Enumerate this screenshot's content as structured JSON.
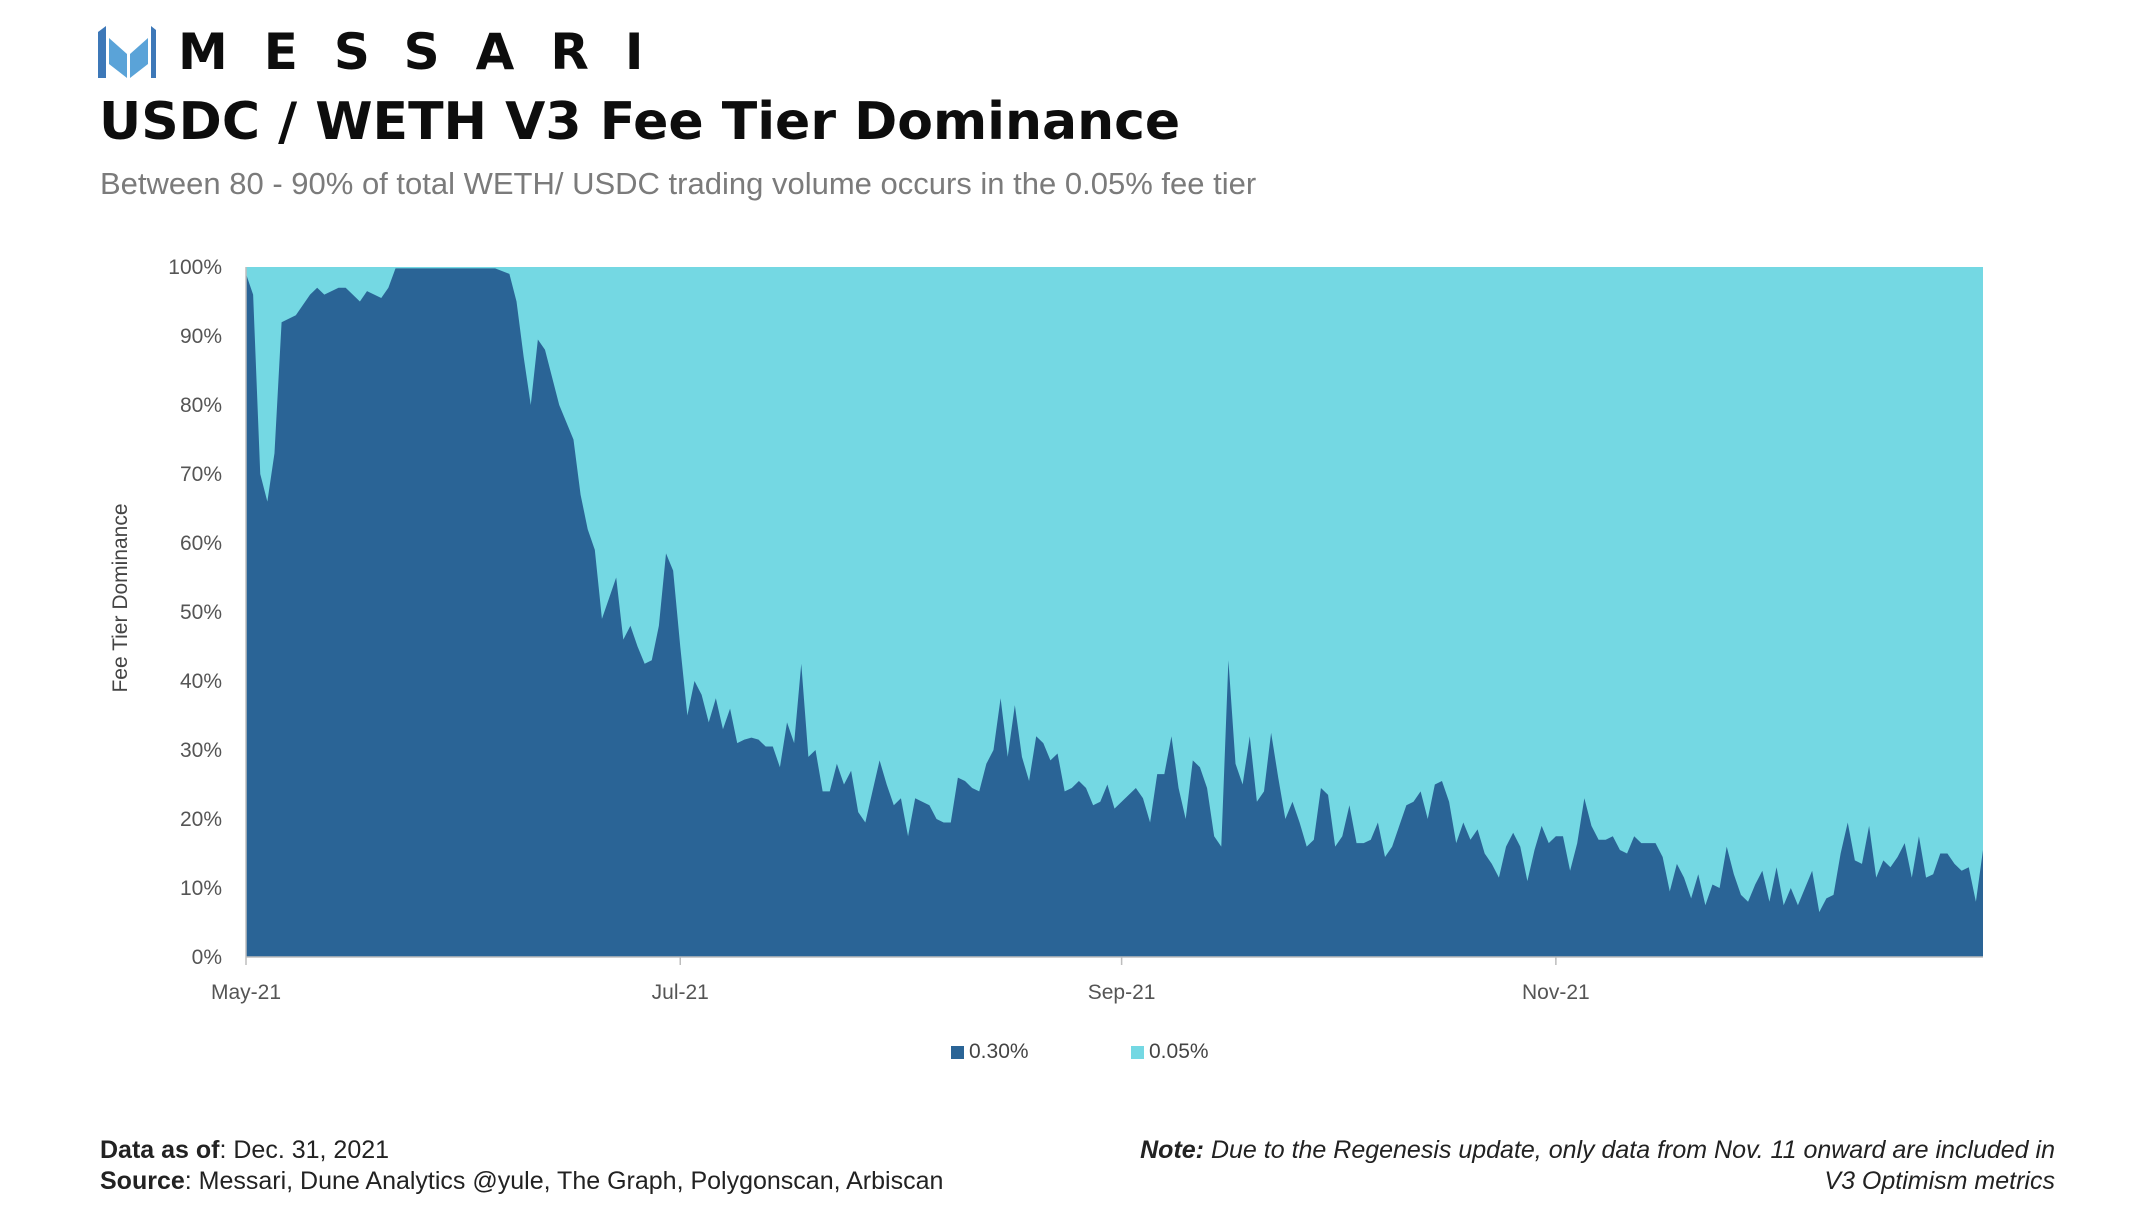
{
  "brand": {
    "name": "MESSARI"
  },
  "header": {
    "title": "USDC / WETH V3 Fee Tier Dominance",
    "subtitle": "Between 80 - 90% of total WETH/ USDC trading volume occurs in the 0.05% fee tier"
  },
  "colors": {
    "series_030": "#2a6496",
    "series_005": "#74d8e3",
    "logo": "#3d78b8"
  },
  "chart_data": {
    "type": "area",
    "stacked": true,
    "title": "USDC / WETH V3 Fee Tier Dominance",
    "xlabel": "",
    "ylabel": "Fee Tier Dominance",
    "ylim": [
      0,
      100
    ],
    "yticks": [
      0,
      10,
      20,
      30,
      40,
      50,
      60,
      70,
      80,
      90,
      100
    ],
    "ytick_labels": [
      "0%",
      "10%",
      "20%",
      "30%",
      "40%",
      "50%",
      "60%",
      "70%",
      "80%",
      "90%",
      "100%"
    ],
    "x_range": [
      "2021-05-01",
      "2021-12-31"
    ],
    "xticks": [
      {
        "date": "2021-05-01",
        "label": "May-21"
      },
      {
        "date": "2021-07-01",
        "label": "Jul-21"
      },
      {
        "date": "2021-09-01",
        "label": "Sep-21"
      },
      {
        "date": "2021-11-01",
        "label": "Nov-21"
      }
    ],
    "legend_position": "bottom",
    "series": [
      {
        "name": "0.30%",
        "color": "#2a6496",
        "points": [
          [
            "2021-05-01",
            99
          ],
          [
            "2021-05-02",
            96
          ],
          [
            "2021-05-03",
            70
          ],
          [
            "2021-05-04",
            66
          ],
          [
            "2021-05-05",
            73
          ],
          [
            "2021-05-06",
            92
          ],
          [
            "2021-05-08",
            93
          ],
          [
            "2021-05-10",
            96
          ],
          [
            "2021-05-11",
            97
          ],
          [
            "2021-05-12",
            96
          ],
          [
            "2021-05-14",
            97
          ],
          [
            "2021-05-15",
            97
          ],
          [
            "2021-05-17",
            95
          ],
          [
            "2021-05-18",
            96.5
          ],
          [
            "2021-05-20",
            95.5
          ],
          [
            "2021-05-21",
            97
          ],
          [
            "2021-05-22",
            99.8
          ],
          [
            "2021-06-05",
            99.8
          ],
          [
            "2021-06-07",
            99
          ],
          [
            "2021-06-08",
            95
          ],
          [
            "2021-06-09",
            87
          ],
          [
            "2021-06-10",
            80
          ],
          [
            "2021-06-11",
            89.5
          ],
          [
            "2021-06-12",
            88
          ],
          [
            "2021-06-13",
            84
          ],
          [
            "2021-06-14",
            80
          ],
          [
            "2021-06-16",
            75
          ],
          [
            "2021-06-17",
            67
          ],
          [
            "2021-06-18",
            62
          ],
          [
            "2021-06-19",
            59
          ],
          [
            "2021-06-20",
            49
          ],
          [
            "2021-06-21",
            52
          ],
          [
            "2021-06-22",
            55
          ],
          [
            "2021-06-23",
            46
          ],
          [
            "2021-06-24",
            48
          ],
          [
            "2021-06-25",
            45
          ],
          [
            "2021-06-26",
            42.5
          ],
          [
            "2021-06-27",
            43
          ],
          [
            "2021-06-28",
            48
          ],
          [
            "2021-06-29",
            58.5
          ],
          [
            "2021-06-30",
            56
          ],
          [
            "2021-07-01",
            45
          ],
          [
            "2021-07-02",
            35
          ],
          [
            "2021-07-03",
            40
          ],
          [
            "2021-07-04",
            38
          ],
          [
            "2021-07-05",
            34
          ],
          [
            "2021-07-06",
            37.5
          ],
          [
            "2021-07-07",
            33
          ],
          [
            "2021-07-08",
            36
          ],
          [
            "2021-07-09",
            31
          ],
          [
            "2021-07-10",
            31.5
          ],
          [
            "2021-07-11",
            31.8
          ],
          [
            "2021-07-12",
            31.5
          ],
          [
            "2021-07-13",
            30.5
          ],
          [
            "2021-07-14",
            30.5
          ],
          [
            "2021-07-15",
            27.5
          ],
          [
            "2021-07-16",
            34
          ],
          [
            "2021-07-17",
            31
          ],
          [
            "2021-07-18",
            42.5
          ],
          [
            "2021-07-19",
            29
          ],
          [
            "2021-07-20",
            30
          ],
          [
            "2021-07-21",
            24
          ],
          [
            "2021-07-22",
            24
          ],
          [
            "2021-07-23",
            28
          ],
          [
            "2021-07-24",
            25
          ],
          [
            "2021-07-25",
            27
          ],
          [
            "2021-07-26",
            21
          ],
          [
            "2021-07-27",
            19.5
          ],
          [
            "2021-07-28",
            24
          ],
          [
            "2021-07-29",
            28.5
          ],
          [
            "2021-07-30",
            25
          ],
          [
            "2021-07-31",
            22
          ],
          [
            "2021-08-01",
            23
          ],
          [
            "2021-08-02",
            17.5
          ],
          [
            "2021-08-03",
            23
          ],
          [
            "2021-08-04",
            22.5
          ],
          [
            "2021-08-05",
            22
          ],
          [
            "2021-08-06",
            20
          ],
          [
            "2021-08-07",
            19.5
          ],
          [
            "2021-08-08",
            19.5
          ],
          [
            "2021-08-09",
            26
          ],
          [
            "2021-08-10",
            25.5
          ],
          [
            "2021-08-11",
            24.5
          ],
          [
            "2021-08-12",
            24
          ],
          [
            "2021-08-13",
            28
          ],
          [
            "2021-08-14",
            30
          ],
          [
            "2021-08-15",
            37.5
          ],
          [
            "2021-08-16",
            29
          ],
          [
            "2021-08-17",
            36.5
          ],
          [
            "2021-08-18",
            29
          ],
          [
            "2021-08-19",
            25.5
          ],
          [
            "2021-08-20",
            32
          ],
          [
            "2021-08-21",
            31
          ],
          [
            "2021-08-22",
            28.5
          ],
          [
            "2021-08-23",
            29.5
          ],
          [
            "2021-08-24",
            24
          ],
          [
            "2021-08-25",
            24.5
          ],
          [
            "2021-08-26",
            25.5
          ],
          [
            "2021-08-27",
            24.5
          ],
          [
            "2021-08-28",
            22
          ],
          [
            "2021-08-29",
            22.5
          ],
          [
            "2021-08-30",
            25
          ],
          [
            "2021-08-31",
            21.5
          ],
          [
            "2021-09-01",
            22.5
          ],
          [
            "2021-09-02",
            23.5
          ],
          [
            "2021-09-03",
            24.5
          ],
          [
            "2021-09-04",
            23
          ],
          [
            "2021-09-05",
            19.5
          ],
          [
            "2021-09-06",
            26.5
          ],
          [
            "2021-09-07",
            26.5
          ],
          [
            "2021-09-08",
            32
          ],
          [
            "2021-09-09",
            24.5
          ],
          [
            "2021-09-10",
            20
          ],
          [
            "2021-09-11",
            28.5
          ],
          [
            "2021-09-12",
            27.5
          ],
          [
            "2021-09-13",
            24.5
          ],
          [
            "2021-09-14",
            17.5
          ],
          [
            "2021-09-15",
            16
          ],
          [
            "2021-09-16",
            43
          ],
          [
            "2021-09-17",
            28
          ],
          [
            "2021-09-18",
            25
          ],
          [
            "2021-09-19",
            32
          ],
          [
            "2021-09-20",
            22.5
          ],
          [
            "2021-09-21",
            24
          ],
          [
            "2021-09-22",
            32.5
          ],
          [
            "2021-09-23",
            26
          ],
          [
            "2021-09-24",
            20
          ],
          [
            "2021-09-25",
            22.5
          ],
          [
            "2021-09-26",
            19.5
          ],
          [
            "2021-09-27",
            16
          ],
          [
            "2021-09-28",
            17
          ],
          [
            "2021-09-29",
            24.5
          ],
          [
            "2021-09-30",
            23.5
          ],
          [
            "2021-10-01",
            16
          ],
          [
            "2021-10-02",
            17.5
          ],
          [
            "2021-10-03",
            22
          ],
          [
            "2021-10-04",
            16.5
          ],
          [
            "2021-10-05",
            16.5
          ],
          [
            "2021-10-06",
            17
          ],
          [
            "2021-10-07",
            19.5
          ],
          [
            "2021-10-08",
            14.5
          ],
          [
            "2021-10-09",
            16
          ],
          [
            "2021-10-10",
            19
          ],
          [
            "2021-10-11",
            22
          ],
          [
            "2021-10-12",
            22.5
          ],
          [
            "2021-10-13",
            24
          ],
          [
            "2021-10-14",
            20
          ],
          [
            "2021-10-15",
            25
          ],
          [
            "2021-10-16",
            25.5
          ],
          [
            "2021-10-17",
            22.5
          ],
          [
            "2021-10-18",
            16.5
          ],
          [
            "2021-10-19",
            19.5
          ],
          [
            "2021-10-20",
            17
          ],
          [
            "2021-10-21",
            18.5
          ],
          [
            "2021-10-22",
            15
          ],
          [
            "2021-10-23",
            13.5
          ],
          [
            "2021-10-24",
            11.5
          ],
          [
            "2021-10-25",
            16
          ],
          [
            "2021-10-26",
            18
          ],
          [
            "2021-10-27",
            16
          ],
          [
            "2021-10-28",
            11
          ],
          [
            "2021-10-29",
            15.5
          ],
          [
            "2021-10-30",
            19
          ],
          [
            "2021-10-31",
            16.5
          ],
          [
            "2021-11-01",
            17.5
          ],
          [
            "2021-11-02",
            17.5
          ],
          [
            "2021-11-03",
            12.5
          ],
          [
            "2021-11-04",
            16.5
          ],
          [
            "2021-11-05",
            23
          ],
          [
            "2021-11-06",
            19
          ],
          [
            "2021-11-07",
            17
          ],
          [
            "2021-11-08",
            17
          ],
          [
            "2021-11-09",
            17.5
          ],
          [
            "2021-11-10",
            15.5
          ],
          [
            "2021-11-11",
            15
          ],
          [
            "2021-11-12",
            17.5
          ],
          [
            "2021-11-13",
            16.5
          ],
          [
            "2021-11-14",
            16.5
          ],
          [
            "2021-11-15",
            16.5
          ],
          [
            "2021-11-16",
            14.5
          ],
          [
            "2021-11-17",
            9.5
          ],
          [
            "2021-11-18",
            13.5
          ],
          [
            "2021-11-19",
            11.5
          ],
          [
            "2021-11-20",
            8.5
          ],
          [
            "2021-11-21",
            12
          ],
          [
            "2021-11-22",
            7.5
          ],
          [
            "2021-11-23",
            10.5
          ],
          [
            "2021-11-24",
            10
          ],
          [
            "2021-11-25",
            16
          ],
          [
            "2021-11-26",
            12
          ],
          [
            "2021-11-27",
            9
          ],
          [
            "2021-11-28",
            8
          ],
          [
            "2021-11-29",
            10.5
          ],
          [
            "2021-11-30",
            12.5
          ],
          [
            "2021-12-01",
            8
          ],
          [
            "2021-12-02",
            13
          ],
          [
            "2021-12-03",
            7.5
          ],
          [
            "2021-12-04",
            10
          ],
          [
            "2021-12-05",
            7.5
          ],
          [
            "2021-12-06",
            10
          ],
          [
            "2021-12-07",
            12.5
          ],
          [
            "2021-12-08",
            6.5
          ],
          [
            "2021-12-09",
            8.5
          ],
          [
            "2021-12-10",
            9
          ],
          [
            "2021-12-11",
            15
          ],
          [
            "2021-12-12",
            19.5
          ],
          [
            "2021-12-13",
            14
          ],
          [
            "2021-12-14",
            13.5
          ],
          [
            "2021-12-15",
            19
          ],
          [
            "2021-12-16",
            11.5
          ],
          [
            "2021-12-17",
            14
          ],
          [
            "2021-12-18",
            13
          ],
          [
            "2021-12-19",
            14.5
          ],
          [
            "2021-12-20",
            16.5
          ],
          [
            "2021-12-21",
            11.5
          ],
          [
            "2021-12-22",
            17.5
          ],
          [
            "2021-12-23",
            11.5
          ],
          [
            "2021-12-24",
            12
          ],
          [
            "2021-12-25",
            15
          ],
          [
            "2021-12-26",
            15
          ],
          [
            "2021-12-27",
            13.5
          ],
          [
            "2021-12-28",
            12.5
          ],
          [
            "2021-12-29",
            13
          ],
          [
            "2021-12-30",
            8
          ],
          [
            "2021-12-31",
            15.5
          ]
        ]
      },
      {
        "name": "0.05%",
        "color": "#74d8e3",
        "note": "fills remainder to 100%"
      }
    ]
  },
  "legend": [
    {
      "label": "0.30%",
      "color": "#2a6496"
    },
    {
      "label": "0.05%",
      "color": "#74d8e3"
    }
  ],
  "footer": {
    "data_label": "Data as of",
    "data_value": ": Dec. 31, 2021",
    "source_label": "Source",
    "source_value": ": Messari, Dune Analytics @yule, The Graph, Polygonscan, Arbiscan",
    "note_label": "Note:",
    "note_line1": " Due to the Regenesis update, only data from Nov. 11 onward are included in",
    "note_line2": "V3 Optimism metrics"
  }
}
